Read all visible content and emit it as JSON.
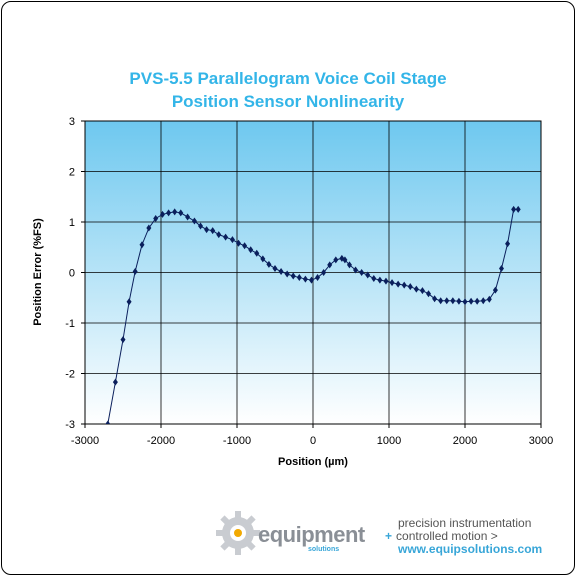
{
  "chart_data": {
    "type": "line",
    "title": "PVS-5.5 Parallelogram Voice Coil Stage",
    "subtitle": "Position Sensor Nonlinearity",
    "xlabel": "Position (µm)",
    "ylabel": "Position Error (%FS)",
    "xlim": [
      -3000,
      3000
    ],
    "ylim": [
      -3,
      3
    ],
    "xticks": [
      "-3000",
      "-2000",
      "-1000",
      "0",
      "1000",
      "2000",
      "3000"
    ],
    "yticks": [
      "3",
      "2",
      "1",
      "0",
      "-1",
      "-2",
      "-3"
    ],
    "grid": true,
    "legend": "none",
    "background_gradient": [
      "#6ec8ef",
      "#ffffff"
    ],
    "series_color": "#0a1f5c",
    "series": [
      {
        "x": [
          -2700,
          -2600,
          -2500,
          -2420,
          -2340,
          -2250,
          -2160,
          -2070,
          -1980,
          -1900,
          -1820,
          -1740,
          -1650,
          -1560,
          -1480,
          -1400,
          -1320,
          -1240,
          -1150,
          -1060,
          -980,
          -900,
          -820,
          -740,
          -660,
          -580,
          -500,
          -420,
          -340,
          -260,
          -180,
          -100,
          -20,
          60,
          140,
          220,
          300,
          380,
          420,
          480,
          560,
          640,
          720,
          800,
          880,
          960,
          1040,
          1120,
          1200,
          1280,
          1360,
          1440,
          1520,
          1600,
          1680,
          1760,
          1840,
          1920,
          2000,
          2080,
          2160,
          2240,
          2320,
          2400,
          2480,
          2560,
          2640,
          2700
        ],
        "y": [
          -3.0,
          -2.17,
          -1.33,
          -0.58,
          0.02,
          0.55,
          0.88,
          1.07,
          1.15,
          1.18,
          1.2,
          1.18,
          1.1,
          1.02,
          0.92,
          0.85,
          0.83,
          0.75,
          0.7,
          0.65,
          0.58,
          0.53,
          0.45,
          0.38,
          0.27,
          0.16,
          0.08,
          0.02,
          -0.03,
          -0.07,
          -0.1,
          -0.13,
          -0.15,
          -0.1,
          0.0,
          0.15,
          0.25,
          0.28,
          0.25,
          0.15,
          0.05,
          0.0,
          -0.05,
          -0.12,
          -0.15,
          -0.17,
          -0.2,
          -0.23,
          -0.25,
          -0.28,
          -0.33,
          -0.36,
          -0.42,
          -0.52,
          -0.56,
          -0.56,
          -0.56,
          -0.57,
          -0.58,
          -0.57,
          -0.57,
          -0.56,
          -0.53,
          -0.35,
          0.08,
          0.57,
          1.25,
          1.25
        ]
      }
    ]
  },
  "footer": {
    "logo_text": "equipment",
    "logo_sub": "solutions",
    "tagline_1": "precision instrumentation",
    "tagline_2_plus": "+",
    "tagline_2": "controlled motion >",
    "tagline_3": "www.equipsolutions.com"
  }
}
